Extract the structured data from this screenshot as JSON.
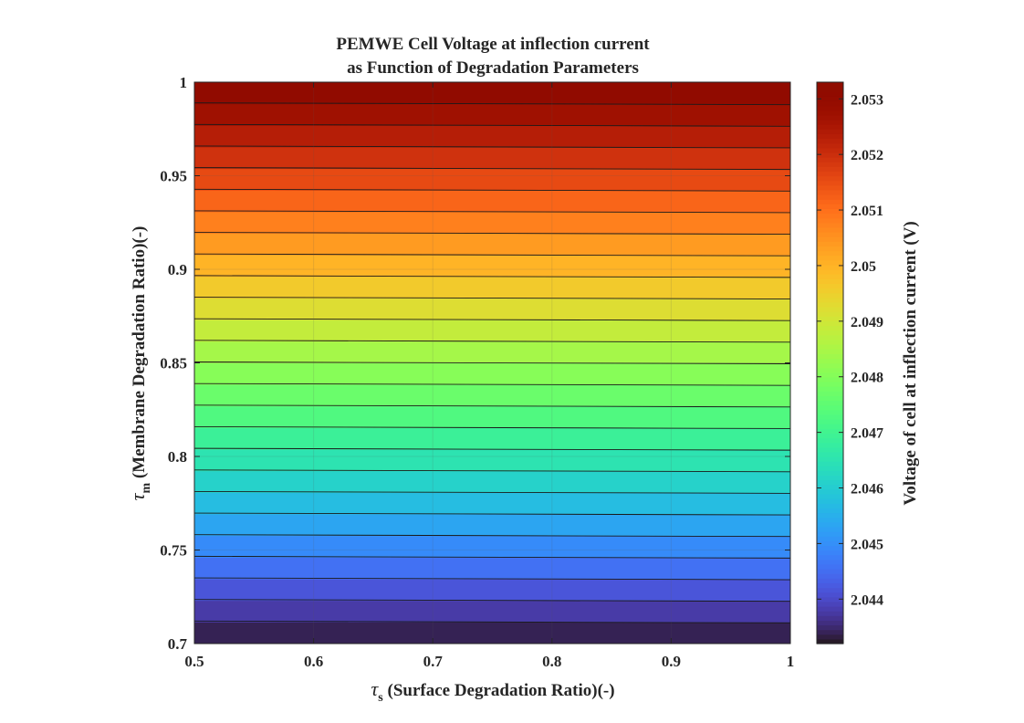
{
  "chart_data": {
    "type": "heatmap",
    "subtype": "filled-contour",
    "title": [
      "PEMWE Cell Voltage at inflection current",
      "as Function of Degradation Parameters"
    ],
    "xlabel": {
      "symbol": "τ",
      "subscript": "s",
      "text": " (Surface Degradation Ratio)(-)"
    },
    "ylabel": {
      "symbol": "τ",
      "subscript": "m",
      "text": " (Membrane Degradation Ratio)(-)"
    },
    "colorbar_label": "Voltage of cell at inflection current (V)",
    "xlim": [
      0.5,
      1
    ],
    "ylim": [
      0.7,
      1
    ],
    "xticks": [
      0.5,
      0.6,
      0.7,
      0.8,
      0.9,
      1
    ],
    "yticks": [
      0.7,
      0.75,
      0.8,
      0.85,
      0.9,
      0.95,
      1
    ],
    "xtick_labels": [
      "0.5",
      "0.6",
      "0.7",
      "0.8",
      "0.9",
      "1"
    ],
    "ytick_labels": [
      "0.7",
      "0.75",
      "0.8",
      "0.85",
      "0.9",
      "0.95",
      "1"
    ],
    "colorbar": {
      "colormap": "turbo",
      "range": [
        2.0432,
        2.0533
      ],
      "ticks": [
        2.044,
        2.045,
        2.046,
        2.047,
        2.048,
        2.049,
        2.05,
        2.051,
        2.052,
        2.053
      ],
      "tick_labels": [
        "2.044",
        "2.045",
        "2.046",
        "2.047",
        "2.048",
        "2.049",
        "2.05",
        "2.051",
        "2.052",
        "2.053"
      ]
    },
    "contour_levels": 26,
    "z_at_ylim": [
      2.0432,
      2.0533
    ],
    "z_varies_with": "y",
    "grid": true
  }
}
